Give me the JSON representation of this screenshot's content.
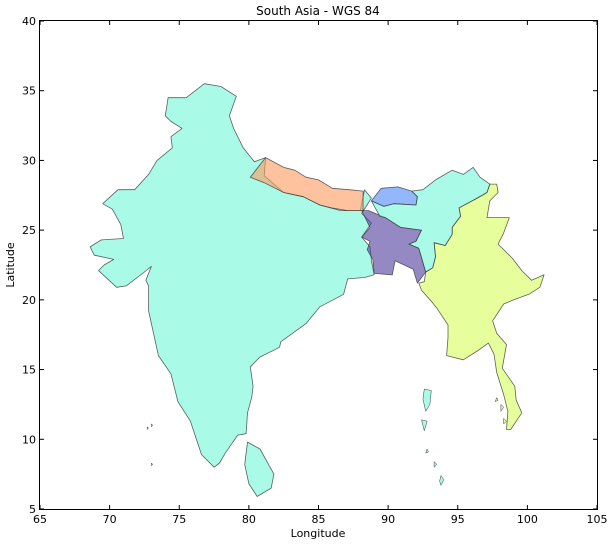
{
  "title": "South Asia - WGS 84",
  "xlabel": "Longitude",
  "ylabel": "Latitude",
  "xlim": [
    65,
    105
  ],
  "ylim": [
    5,
    40
  ],
  "xticks": [
    65,
    70,
    75,
    80,
    85,
    90,
    95,
    100,
    105
  ],
  "yticks": [
    5,
    10,
    15,
    20,
    25,
    30,
    35,
    40
  ],
  "countries": [
    {
      "key": "india",
      "color": "#6ff7d6",
      "outline": [
        [
          75.5,
          34.5
        ],
        [
          76.8,
          35.5
        ],
        [
          78.0,
          35.3
        ],
        [
          79.1,
          34.6
        ],
        [
          78.6,
          33.2
        ],
        [
          78.9,
          32.3
        ],
        [
          79.6,
          30.9
        ],
        [
          80.4,
          29.9
        ],
        [
          81.2,
          30.2
        ],
        [
          81.1,
          28.9
        ],
        [
          82.5,
          27.7
        ],
        [
          83.9,
          27.4
        ],
        [
          85.1,
          26.8
        ],
        [
          86.6,
          26.4
        ],
        [
          88.0,
          26.4
        ],
        [
          88.3,
          27.9
        ],
        [
          88.8,
          27.3
        ],
        [
          88.1,
          26.2
        ],
        [
          88.8,
          25.5
        ],
        [
          88.1,
          24.5
        ],
        [
          88.7,
          23.8
        ],
        [
          88.8,
          22.8
        ],
        [
          89.0,
          21.8
        ],
        [
          88.3,
          21.6
        ],
        [
          87.1,
          21.5
        ],
        [
          86.8,
          20.4
        ],
        [
          85.1,
          19.5
        ],
        [
          84.1,
          18.3
        ],
        [
          82.3,
          17.0
        ],
        [
          82.2,
          16.6
        ],
        [
          80.8,
          15.9
        ],
        [
          80.1,
          15.2
        ],
        [
          80.3,
          13.8
        ],
        [
          80.2,
          13.0
        ],
        [
          79.9,
          11.9
        ],
        [
          79.8,
          10.4
        ],
        [
          79.2,
          10.3
        ],
        [
          78.3,
          9.0
        ],
        [
          77.9,
          8.3
        ],
        [
          77.5,
          8.0
        ],
        [
          76.6,
          8.9
        ],
        [
          75.8,
          11.3
        ],
        [
          74.9,
          12.7
        ],
        [
          74.4,
          14.7
        ],
        [
          73.5,
          16.0
        ],
        [
          72.8,
          19.2
        ],
        [
          72.8,
          21.0
        ],
        [
          72.6,
          21.4
        ],
        [
          73.0,
          22.4
        ],
        [
          72.5,
          22.0
        ],
        [
          71.2,
          21.0
        ],
        [
          70.5,
          20.9
        ],
        [
          69.2,
          22.1
        ],
        [
          69.6,
          22.5
        ],
        [
          70.3,
          22.9
        ],
        [
          68.9,
          23.2
        ],
        [
          68.6,
          23.8
        ],
        [
          69.4,
          24.3
        ],
        [
          71.0,
          24.4
        ],
        [
          70.8,
          25.4
        ],
        [
          70.2,
          26.5
        ],
        [
          69.5,
          26.9
        ],
        [
          70.6,
          27.9
        ],
        [
          71.8,
          27.9
        ],
        [
          72.8,
          29.0
        ],
        [
          73.4,
          30.0
        ],
        [
          74.5,
          30.9
        ],
        [
          74.4,
          31.7
        ],
        [
          75.2,
          32.3
        ],
        [
          74.4,
          32.8
        ],
        [
          74.0,
          33.2
        ],
        [
          74.2,
          34.5
        ],
        [
          75.5,
          34.5
        ]
      ]
    },
    {
      "key": "nepal",
      "color": "#fe9a5d",
      "outline": [
        [
          80.1,
          28.8
        ],
        [
          81.2,
          30.2
        ],
        [
          82.5,
          29.5
        ],
        [
          83.3,
          29.3
        ],
        [
          84.1,
          28.8
        ],
        [
          85.0,
          28.6
        ],
        [
          86.0,
          28.0
        ],
        [
          87.2,
          27.9
        ],
        [
          88.2,
          27.8
        ],
        [
          88.2,
          26.4
        ],
        [
          87.1,
          26.4
        ],
        [
          85.9,
          26.6
        ],
        [
          85.1,
          26.8
        ],
        [
          83.9,
          27.4
        ],
        [
          82.5,
          27.7
        ],
        [
          81.1,
          28.4
        ],
        [
          80.1,
          28.8
        ]
      ]
    },
    {
      "key": "bhutan",
      "color": "#4d86fc",
      "outline": [
        [
          88.8,
          27.1
        ],
        [
          89.5,
          28.0
        ],
        [
          90.7,
          28.1
        ],
        [
          91.7,
          27.8
        ],
        [
          92.1,
          27.4
        ],
        [
          92.0,
          26.8
        ],
        [
          90.4,
          26.9
        ],
        [
          89.7,
          26.7
        ],
        [
          88.8,
          27.1
        ]
      ]
    },
    {
      "key": "bangladesh",
      "color": "#4e3a9c",
      "outline": [
        [
          88.1,
          26.4
        ],
        [
          88.6,
          26.4
        ],
        [
          89.8,
          25.9
        ],
        [
          90.9,
          25.2
        ],
        [
          92.4,
          25.0
        ],
        [
          92.0,
          24.2
        ],
        [
          91.5,
          24.0
        ],
        [
          92.2,
          23.7
        ],
        [
          92.7,
          22.0
        ],
        [
          92.1,
          21.2
        ],
        [
          91.8,
          22.2
        ],
        [
          90.5,
          22.8
        ],
        [
          90.3,
          21.8
        ],
        [
          89.0,
          21.9
        ],
        [
          88.9,
          22.9
        ],
        [
          88.5,
          23.6
        ],
        [
          88.7,
          24.2
        ],
        [
          88.1,
          24.5
        ],
        [
          88.7,
          25.2
        ],
        [
          88.1,
          26.4
        ]
      ]
    },
    {
      "key": "myanmar",
      "color": "#d5ff5a",
      "outline": [
        [
          97.3,
          28.3
        ],
        [
          97.8,
          28.3
        ],
        [
          97.9,
          27.7
        ],
        [
          97.3,
          27.1
        ],
        [
          97.1,
          25.9
        ],
        [
          98.7,
          25.9
        ],
        [
          98.3,
          24.8
        ],
        [
          97.9,
          24.0
        ],
        [
          98.9,
          23.0
        ],
        [
          99.6,
          22.1
        ],
        [
          100.3,
          21.4
        ],
        [
          101.2,
          21.8
        ],
        [
          100.9,
          20.9
        ],
        [
          100.1,
          20.4
        ],
        [
          99.0,
          20.0
        ],
        [
          98.3,
          19.7
        ],
        [
          97.5,
          18.5
        ],
        [
          97.8,
          17.6
        ],
        [
          98.5,
          16.8
        ],
        [
          98.2,
          15.1
        ],
        [
          99.1,
          13.8
        ],
        [
          99.2,
          12.8
        ],
        [
          99.6,
          11.9
        ],
        [
          98.8,
          10.7
        ],
        [
          98.5,
          10.7
        ],
        [
          98.6,
          12.0
        ],
        [
          98.3,
          13.2
        ],
        [
          97.8,
          14.8
        ],
        [
          97.6,
          16.1
        ],
        [
          97.2,
          16.9
        ],
        [
          96.5,
          16.4
        ],
        [
          95.4,
          15.7
        ],
        [
          94.2,
          16.0
        ],
        [
          94.3,
          17.3
        ],
        [
          94.3,
          18.2
        ],
        [
          93.5,
          19.4
        ],
        [
          93.1,
          19.9
        ],
        [
          92.4,
          20.7
        ],
        [
          92.2,
          21.2
        ],
        [
          92.6,
          21.3
        ],
        [
          92.7,
          22.0
        ],
        [
          93.2,
          22.3
        ],
        [
          93.4,
          23.1
        ],
        [
          93.3,
          24.1
        ],
        [
          94.1,
          23.9
        ],
        [
          94.6,
          24.7
        ],
        [
          94.6,
          25.2
        ],
        [
          95.2,
          26.0
        ],
        [
          95.1,
          26.6
        ],
        [
          96.4,
          27.3
        ],
        [
          97.1,
          27.7
        ],
        [
          97.3,
          28.3
        ]
      ]
    },
    {
      "key": "india-northeast",
      "color": "#6ff7d6",
      "outline": [
        [
          88.8,
          27.1
        ],
        [
          89.7,
          26.7
        ],
        [
          90.4,
          26.9
        ],
        [
          92.0,
          26.8
        ],
        [
          92.1,
          27.4
        ],
        [
          91.7,
          27.8
        ],
        [
          92.5,
          27.9
        ],
        [
          93.4,
          28.6
        ],
        [
          94.6,
          29.3
        ],
        [
          95.4,
          29.0
        ],
        [
          96.1,
          29.5
        ],
        [
          96.6,
          28.8
        ],
        [
          97.3,
          28.3
        ],
        [
          97.1,
          27.7
        ],
        [
          96.4,
          27.3
        ],
        [
          95.1,
          26.6
        ],
        [
          95.2,
          26.0
        ],
        [
          94.6,
          25.2
        ],
        [
          94.6,
          24.7
        ],
        [
          94.1,
          23.9
        ],
        [
          93.3,
          24.1
        ],
        [
          93.4,
          23.1
        ],
        [
          93.2,
          22.3
        ],
        [
          92.7,
          22.0
        ],
        [
          92.2,
          23.7
        ],
        [
          91.5,
          24.0
        ],
        [
          92.0,
          24.2
        ],
        [
          92.4,
          25.0
        ],
        [
          90.9,
          25.2
        ],
        [
          89.8,
          25.9
        ],
        [
          89.4,
          26.0
        ],
        [
          88.8,
          27.1
        ]
      ]
    },
    {
      "key": "sri-lanka",
      "color": "#6ff7d6",
      "outline": [
        [
          79.9,
          9.8
        ],
        [
          80.8,
          9.3
        ],
        [
          81.8,
          7.5
        ],
        [
          81.6,
          6.5
        ],
        [
          80.6,
          5.9
        ],
        [
          80.0,
          6.8
        ],
        [
          79.7,
          8.2
        ],
        [
          79.9,
          9.8
        ]
      ]
    }
  ],
  "islands": [
    {
      "color": "#6ff7d6",
      "outline": [
        [
          92.6,
          13.6
        ],
        [
          93.1,
          13.5
        ],
        [
          93.0,
          12.5
        ],
        [
          92.7,
          12.0
        ],
        [
          92.5,
          12.9
        ],
        [
          92.6,
          13.6
        ]
      ]
    },
    {
      "color": "#6ff7d6",
      "outline": [
        [
          92.4,
          11.4
        ],
        [
          92.8,
          11.3
        ],
        [
          92.6,
          10.6
        ],
        [
          92.4,
          11.4
        ]
      ]
    },
    {
      "color": "#6ff7d6",
      "outline": [
        [
          93.8,
          7.4
        ],
        [
          94.0,
          7.1
        ],
        [
          93.8,
          6.7
        ],
        [
          93.7,
          7.0
        ],
        [
          93.8,
          7.4
        ]
      ]
    },
    {
      "color": "#6ff7d6",
      "outline": [
        [
          93.3,
          8.4
        ],
        [
          93.5,
          8.2
        ],
        [
          93.3,
          8.0
        ],
        [
          93.3,
          8.4
        ]
      ]
    },
    {
      "color": "#6ff7d6",
      "outline": [
        [
          92.8,
          9.3
        ],
        [
          92.9,
          9.1
        ],
        [
          92.7,
          9.0
        ],
        [
          92.8,
          9.3
        ]
      ]
    },
    {
      "color": "#6ff7d6",
      "outline": [
        [
          73.0,
          11.1
        ],
        [
          73.1,
          11.0
        ],
        [
          73.0,
          10.9
        ],
        [
          73.0,
          11.1
        ]
      ]
    },
    {
      "color": "#6ff7d6",
      "outline": [
        [
          72.7,
          10.9
        ],
        [
          72.8,
          10.8
        ],
        [
          72.7,
          10.7
        ],
        [
          72.7,
          10.9
        ]
      ]
    },
    {
      "color": "#6ff7d6",
      "outline": [
        [
          73.0,
          8.3
        ],
        [
          73.1,
          8.2
        ],
        [
          73.0,
          8.1
        ],
        [
          73.0,
          8.3
        ]
      ]
    },
    {
      "color": "#d5ff5a",
      "outline": [
        [
          98.1,
          12.5
        ],
        [
          98.3,
          12.3
        ],
        [
          98.1,
          12.0
        ],
        [
          98.1,
          12.5
        ]
      ]
    },
    {
      "color": "#d5ff5a",
      "outline": [
        [
          98.3,
          11.5
        ],
        [
          98.5,
          11.3
        ],
        [
          98.3,
          11.1
        ],
        [
          98.3,
          11.5
        ]
      ]
    },
    {
      "color": "#d5ff5a",
      "outline": [
        [
          97.8,
          13.0
        ],
        [
          97.9,
          12.8
        ],
        [
          97.7,
          12.7
        ],
        [
          97.8,
          13.0
        ]
      ]
    }
  ]
}
